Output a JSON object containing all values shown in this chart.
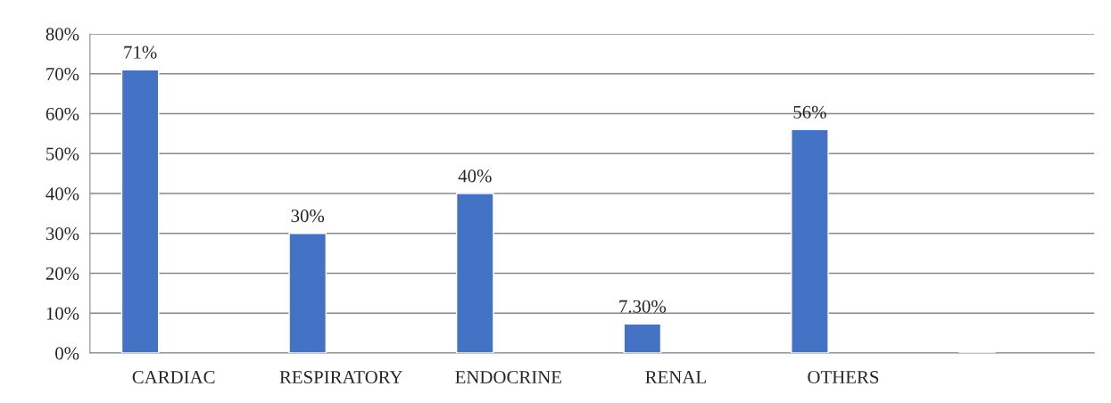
{
  "chart_data": {
    "type": "bar",
    "categories": [
      "CARDIAC",
      "RESPIRATORY",
      "ENDOCRINE",
      "RENAL",
      "OTHERS",
      null
    ],
    "series": [
      {
        "color": "#4472c4",
        "values": [
          71,
          30,
          40,
          7.3,
          56,
          null
        ],
        "value_labels": [
          "71%",
          "30%",
          "40%",
          "7.30%",
          "56%",
          null
        ]
      }
    ],
    "ylim": [
      0,
      80
    ],
    "yticks": [
      {
        "value": 0,
        "label": "0%"
      },
      {
        "value": 10,
        "label": "10%"
      },
      {
        "value": 20,
        "label": "20%"
      },
      {
        "value": 30,
        "label": "30%"
      },
      {
        "value": 40,
        "label": "40%"
      },
      {
        "value": 50,
        "label": "50%"
      },
      {
        "value": 60,
        "label": "60%"
      },
      {
        "value": 70,
        "label": "70%"
      },
      {
        "value": 80,
        "label": "80%"
      }
    ],
    "grid": "y",
    "legend": false
  }
}
